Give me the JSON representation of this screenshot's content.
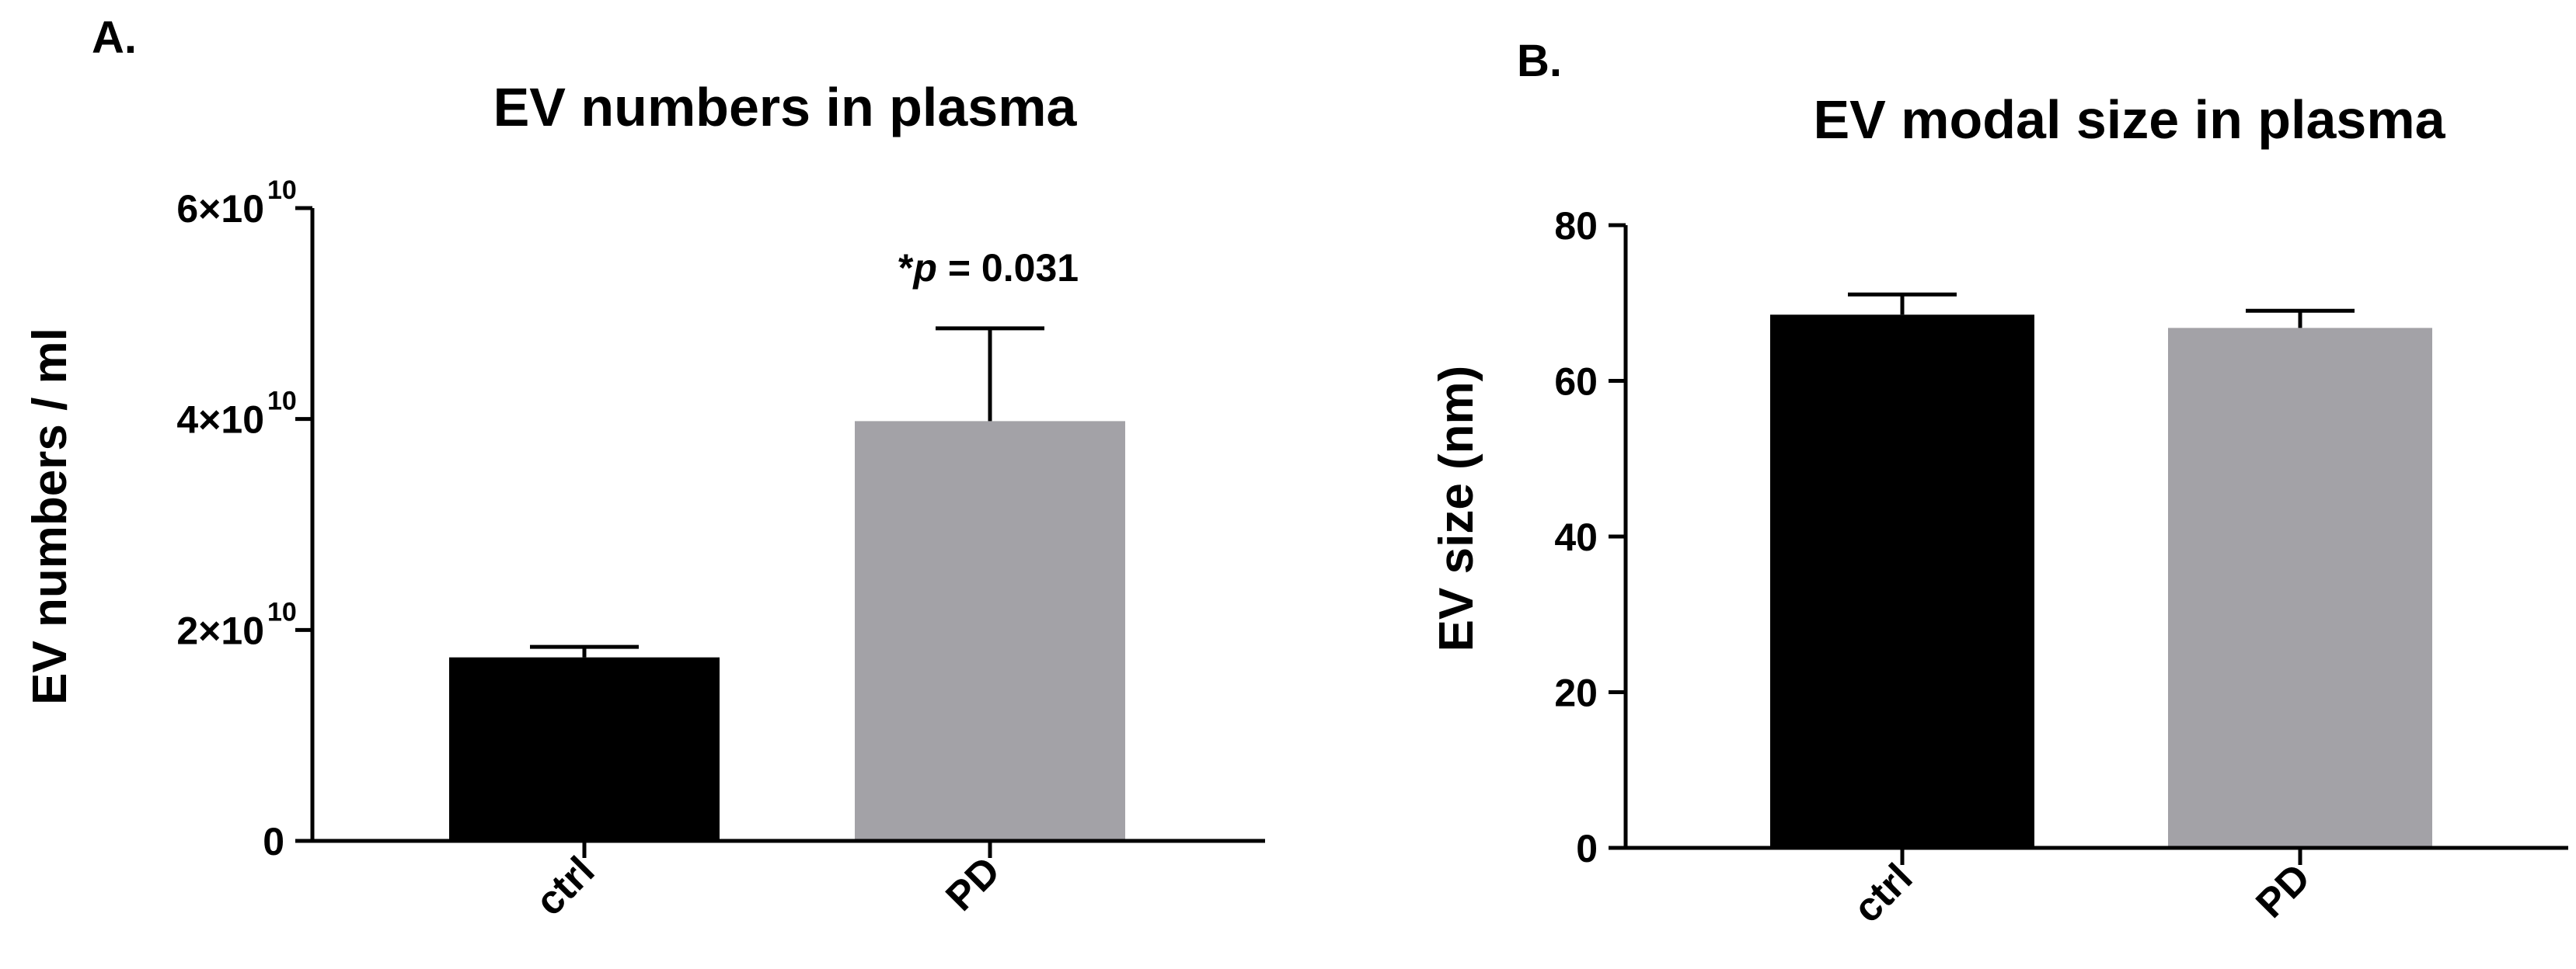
{
  "panels": [
    {
      "label": "A."
    },
    {
      "label": "B."
    }
  ],
  "chart_data": [
    {
      "type": "bar",
      "title": "EV numbers in plasma",
      "xlabel": "",
      "ylabel": "EV numbers / ml",
      "categories": [
        "ctrl",
        "PD"
      ],
      "values": [
        17400000000,
        39800000000
      ],
      "errors": [
        1000000000,
        8800000000
      ],
      "bar_colors": [
        "#000000",
        "#a3a2a7"
      ],
      "ylim": [
        0,
        60000000000
      ],
      "yticks": [
        {
          "value": 0,
          "label": "0",
          "exp": ""
        },
        {
          "value": 20000000000,
          "label": "2×10",
          "exp": "10"
        },
        {
          "value": 40000000000,
          "label": "4×10",
          "exp": "10"
        },
        {
          "value": 60000000000,
          "label": "6×10",
          "exp": "10"
        }
      ],
      "annotation": {
        "prefix": "*",
        "italic": "p",
        "suffix": " = 0.031"
      },
      "grid": false
    },
    {
      "type": "bar",
      "title": "EV modal size in plasma",
      "xlabel": "",
      "ylabel": "EV size (nm)",
      "categories": [
        "ctrl",
        "PD"
      ],
      "values": [
        68.5,
        66.8
      ],
      "errors": [
        2.6,
        2.2
      ],
      "bar_colors": [
        "#000000",
        "#a3a2a7"
      ],
      "ylim": [
        0,
        80
      ],
      "yticks": [
        {
          "value": 0,
          "label": "0",
          "exp": ""
        },
        {
          "value": 20,
          "label": "20",
          "exp": ""
        },
        {
          "value": 40,
          "label": "40",
          "exp": ""
        },
        {
          "value": 60,
          "label": "60",
          "exp": ""
        },
        {
          "value": 80,
          "label": "80",
          "exp": ""
        }
      ],
      "grid": false
    }
  ]
}
